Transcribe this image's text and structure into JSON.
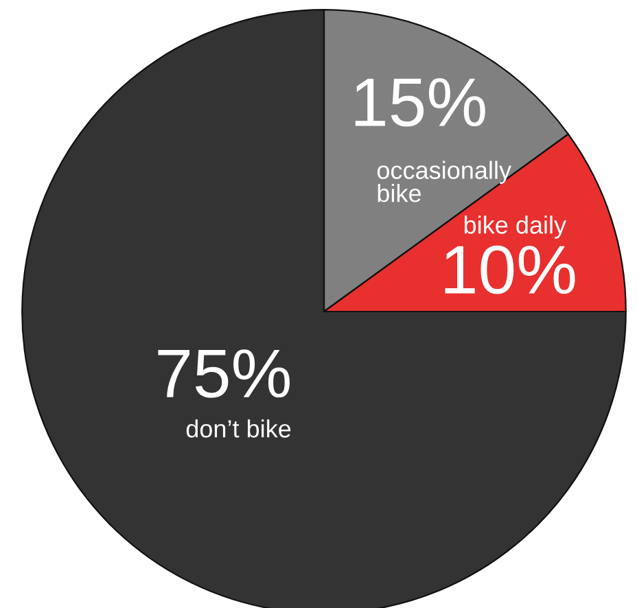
{
  "chart_data": {
    "type": "pie",
    "categories": [
      "occasionally bike",
      "bike daily",
      "don’t bike"
    ],
    "values": [
      15,
      10,
      75
    ],
    "value_labels": [
      "15%",
      "10%",
      "75%"
    ],
    "colors": [
      "#808080",
      "#e8302f",
      "#333333"
    ]
  }
}
